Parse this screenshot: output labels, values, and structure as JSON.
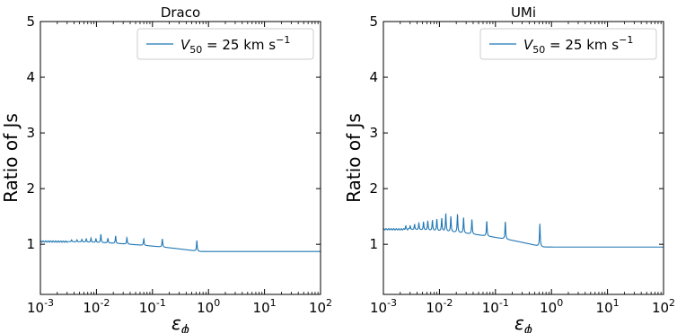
{
  "chart_data": [
    {
      "type": "line",
      "title": "Draco",
      "xlabel": "ε",
      "xlabel_sub": "ϕ",
      "ylabel": "Ratio of Js",
      "xscale": "log",
      "xlim": [
        0.001,
        100
      ],
      "ylim": [
        0.1,
        5
      ],
      "yticks": [
        1,
        2,
        3,
        4,
        5
      ],
      "ytick_labels": [
        "1",
        "2",
        "3",
        "4",
        "5"
      ],
      "xtick_exponents": [
        "-3",
        "-2",
        "-1",
        "0",
        "1",
        "2"
      ],
      "xtick_base": "10",
      "grid": false,
      "legend_position": "top-right",
      "series": [
        {
          "name": "V50 = 25 km s−1",
          "name_parts": {
            "sym": "V",
            "sub": "50",
            "mid": " = 25 km s",
            "sup": "−1"
          },
          "color": "#1f77b4",
          "baseline_start": 1.05,
          "baseline_end": 0.87,
          "peaks": [
            {
              "x": 0.0036,
              "y": 1.08
            },
            {
              "x": 0.0045,
              "y": 1.08
            },
            {
              "x": 0.0055,
              "y": 1.09
            },
            {
              "x": 0.0066,
              "y": 1.1
            },
            {
              "x": 0.008,
              "y": 1.11
            },
            {
              "x": 0.0098,
              "y": 1.1
            },
            {
              "x": 0.012,
              "y": 1.18
            },
            {
              "x": 0.016,
              "y": 1.11
            },
            {
              "x": 0.022,
              "y": 1.15
            },
            {
              "x": 0.035,
              "y": 1.12
            },
            {
              "x": 0.07,
              "y": 1.1
            },
            {
              "x": 0.15,
              "y": 1.1
            },
            {
              "x": 0.62,
              "y": 1.07
            }
          ]
        }
      ]
    },
    {
      "type": "line",
      "title": "UMi",
      "xlabel": "ε",
      "xlabel_sub": "ϕ",
      "ylabel": "Ratio of Js",
      "xscale": "log",
      "xlim": [
        0.001,
        100
      ],
      "ylim": [
        0.1,
        5
      ],
      "yticks": [
        1,
        2,
        3,
        4,
        5
      ],
      "ytick_labels": [
        "1",
        "2",
        "3",
        "4",
        "5"
      ],
      "xtick_exponents": [
        "-3",
        "-2",
        "-1",
        "0",
        "1",
        "2"
      ],
      "xtick_base": "10",
      "grid": false,
      "legend_position": "top-right",
      "series": [
        {
          "name": "V50 = 25 km s−1",
          "name_parts": {
            "sym": "V",
            "sub": "50",
            "mid": " = 25 km s",
            "sup": "−1"
          },
          "color": "#1f77b4",
          "baseline_start": 1.27,
          "baseline_end": 0.95,
          "peaks": [
            {
              "x": 0.0025,
              "y": 1.33
            },
            {
              "x": 0.003,
              "y": 1.34
            },
            {
              "x": 0.0036,
              "y": 1.36
            },
            {
              "x": 0.0043,
              "y": 1.38
            },
            {
              "x": 0.0052,
              "y": 1.4
            },
            {
              "x": 0.0062,
              "y": 1.42
            },
            {
              "x": 0.0075,
              "y": 1.43
            },
            {
              "x": 0.009,
              "y": 1.45
            },
            {
              "x": 0.011,
              "y": 1.47
            },
            {
              "x": 0.013,
              "y": 1.55
            },
            {
              "x": 0.016,
              "y": 1.5
            },
            {
              "x": 0.021,
              "y": 1.54
            },
            {
              "x": 0.027,
              "y": 1.48
            },
            {
              "x": 0.038,
              "y": 1.45
            },
            {
              "x": 0.07,
              "y": 1.42
            },
            {
              "x": 0.15,
              "y": 1.41
            },
            {
              "x": 0.62,
              "y": 1.37
            }
          ]
        }
      ]
    }
  ]
}
